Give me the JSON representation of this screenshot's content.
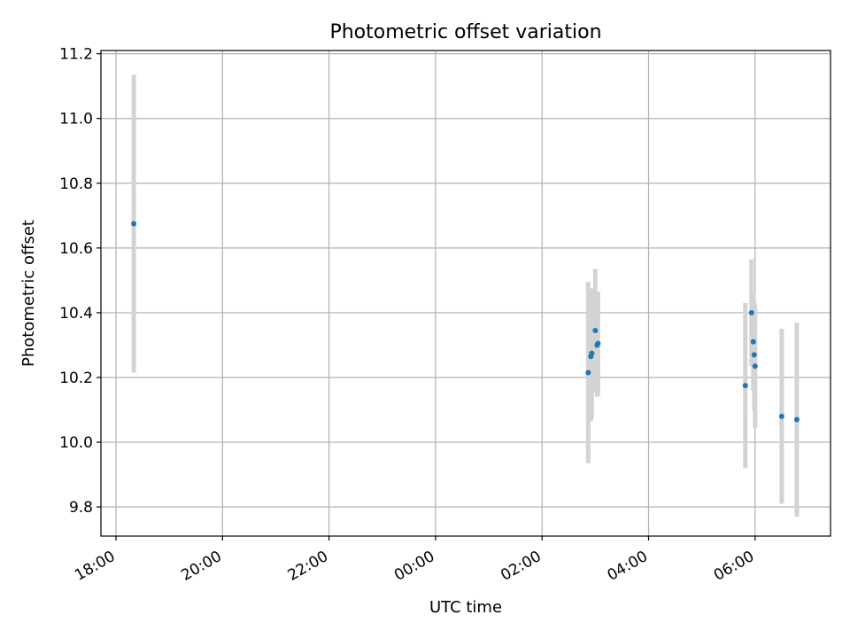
{
  "chart_data": {
    "type": "scatter",
    "title": "Photometric offset variation",
    "xlabel": "UTC time",
    "ylabel": "Photometric offset",
    "x_axis_kind": "time",
    "x_ticks": [
      "18:00",
      "20:00",
      "22:00",
      "00:00",
      "02:00",
      "04:00",
      "06:00"
    ],
    "y_ticks": [
      "9.8",
      "10.0",
      "10.2",
      "10.4",
      "10.6",
      "10.8",
      "11.0",
      "11.2"
    ],
    "xlim": [
      "17:43",
      "07:25"
    ],
    "ylim": [
      9.71,
      11.21
    ],
    "grid": true,
    "marker_color": "#1f77b4",
    "errorbar_color": "#d3d3d3",
    "points": [
      {
        "time": "18:20",
        "y": 10.675,
        "err": 0.46
      },
      {
        "time": "02:52",
        "y": 10.215,
        "err": 0.28
      },
      {
        "time": "02:55",
        "y": 10.265,
        "err": 0.2
      },
      {
        "time": "02:56",
        "y": 10.275,
        "err": 0.2
      },
      {
        "time": "03:00",
        "y": 10.345,
        "err": 0.19
      },
      {
        "time": "03:02",
        "y": 10.3,
        "err": 0.16
      },
      {
        "time": "03:03",
        "y": 10.305,
        "err": 0.16
      },
      {
        "time": "05:49",
        "y": 10.175,
        "err": 0.255
      },
      {
        "time": "05:56",
        "y": 10.4,
        "err": 0.165
      },
      {
        "time": "05:58",
        "y": 10.31,
        "err": 0.15
      },
      {
        "time": "05:59",
        "y": 10.27,
        "err": 0.17
      },
      {
        "time": "06:00",
        "y": 10.235,
        "err": 0.19
      },
      {
        "time": "06:30",
        "y": 10.08,
        "err": 0.27
      },
      {
        "time": "06:47",
        "y": 10.07,
        "err": 0.3
      }
    ]
  }
}
